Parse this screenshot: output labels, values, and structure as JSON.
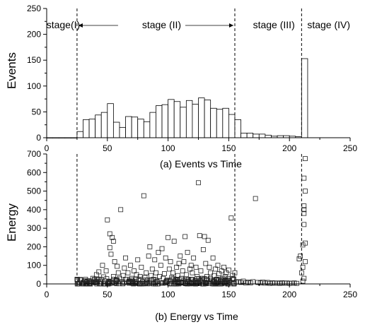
{
  "chart_data": [
    {
      "type": "bar",
      "title": "",
      "caption": "(a) Events vs Time",
      "xlabel": "",
      "ylabel": "Events",
      "xlim": [
        0,
        250
      ],
      "ylim": [
        0,
        250
      ],
      "xticks": [
        0,
        50,
        100,
        150,
        200,
        250
      ],
      "yticks": [
        0,
        50,
        100,
        150,
        200,
        250
      ],
      "bin_width": 5,
      "bins": [
        {
          "x": 0,
          "y": 0
        },
        {
          "x": 5,
          "y": 0
        },
        {
          "x": 10,
          "y": 0
        },
        {
          "x": 15,
          "y": 0
        },
        {
          "x": 20,
          "y": 0
        },
        {
          "x": 25,
          "y": 12
        },
        {
          "x": 30,
          "y": 35
        },
        {
          "x": 35,
          "y": 36
        },
        {
          "x": 40,
          "y": 44
        },
        {
          "x": 45,
          "y": 49
        },
        {
          "x": 50,
          "y": 66
        },
        {
          "x": 55,
          "y": 30
        },
        {
          "x": 60,
          "y": 20
        },
        {
          "x": 65,
          "y": 41
        },
        {
          "x": 70,
          "y": 40
        },
        {
          "x": 75,
          "y": 36
        },
        {
          "x": 80,
          "y": 31
        },
        {
          "x": 85,
          "y": 49
        },
        {
          "x": 90,
          "y": 62
        },
        {
          "x": 95,
          "y": 64
        },
        {
          "x": 100,
          "y": 74
        },
        {
          "x": 105,
          "y": 70
        },
        {
          "x": 110,
          "y": 59
        },
        {
          "x": 115,
          "y": 72
        },
        {
          "x": 120,
          "y": 65
        },
        {
          "x": 125,
          "y": 77
        },
        {
          "x": 130,
          "y": 73
        },
        {
          "x": 135,
          "y": 57
        },
        {
          "x": 140,
          "y": 55
        },
        {
          "x": 145,
          "y": 57
        },
        {
          "x": 150,
          "y": 45
        },
        {
          "x": 155,
          "y": 35
        },
        {
          "x": 160,
          "y": 9
        },
        {
          "x": 165,
          "y": 9
        },
        {
          "x": 170,
          "y": 7
        },
        {
          "x": 175,
          "y": 7
        },
        {
          "x": 180,
          "y": 5
        },
        {
          "x": 185,
          "y": 3
        },
        {
          "x": 190,
          "y": 4
        },
        {
          "x": 195,
          "y": 4
        },
        {
          "x": 200,
          "y": 3
        },
        {
          "x": 205,
          "y": 2
        },
        {
          "x": 210,
          "y": 153
        }
      ],
      "stage_boundaries": [
        25,
        155,
        210
      ],
      "stage_labels": [
        "stage(I)",
        "stage (II)",
        "stage (III)",
        "stage (IV)"
      ]
    },
    {
      "type": "scatter",
      "title": "",
      "caption": "(b) Energy vs Time",
      "xlabel": "",
      "ylabel": "Energy",
      "xlim": [
        0,
        250
      ],
      "ylim": [
        0,
        700
      ],
      "xticks": [
        0,
        50,
        100,
        150,
        200,
        250
      ],
      "yticks": [
        0,
        100,
        200,
        300,
        400,
        500,
        600,
        700
      ],
      "marker": "open-square",
      "stage_boundaries": [
        25,
        155,
        210
      ],
      "points": [
        [
          27,
          8
        ],
        [
          28,
          20
        ],
        [
          30,
          5
        ],
        [
          31,
          12
        ],
        [
          32,
          25
        ],
        [
          33,
          10
        ],
        [
          35,
          5
        ],
        [
          36,
          15
        ],
        [
          38,
          30
        ],
        [
          39,
          8
        ],
        [
          40,
          12
        ],
        [
          41,
          50
        ],
        [
          42,
          20
        ],
        [
          43,
          65
        ],
        [
          44,
          10
        ],
        [
          45,
          25
        ],
        [
          46,
          100
        ],
        [
          47,
          38
        ],
        [
          48,
          15
        ],
        [
          49,
          70
        ],
        [
          50,
          345
        ],
        [
          51,
          5
        ],
        [
          52,
          270
        ],
        [
          52,
          195
        ],
        [
          53,
          160
        ],
        [
          54,
          250
        ],
        [
          55,
          230
        ],
        [
          55,
          40
        ],
        [
          56,
          120
        ],
        [
          57,
          18
        ],
        [
          58,
          95
        ],
        [
          59,
          60
        ],
        [
          60,
          30
        ],
        [
          61,
          400
        ],
        [
          62,
          12
        ],
        [
          63,
          45
        ],
        [
          64,
          85
        ],
        [
          65,
          140
        ],
        [
          66,
          25
        ],
        [
          67,
          60
        ],
        [
          68,
          10
        ],
        [
          69,
          100
        ],
        [
          70,
          30
        ],
        [
          71,
          15
        ],
        [
          72,
          70
        ],
        [
          73,
          8
        ],
        [
          74,
          50
        ],
        [
          75,
          130
        ],
        [
          76,
          20
        ],
        [
          77,
          40
        ],
        [
          78,
          90
        ],
        [
          79,
          12
        ],
        [
          80,
          475
        ],
        [
          81,
          35
        ],
        [
          82,
          60
        ],
        [
          83,
          20
        ],
        [
          84,
          150
        ],
        [
          85,
          200
        ],
        [
          86,
          45
        ],
        [
          87,
          80
        ],
        [
          88,
          25
        ],
        [
          89,
          130
        ],
        [
          90,
          60
        ],
        [
          91,
          15
        ],
        [
          92,
          170
        ],
        [
          93,
          40
        ],
        [
          94,
          100
        ],
        [
          95,
          190
        ],
        [
          96,
          30
        ],
        [
          97,
          55
        ],
        [
          98,
          140
        ],
        [
          99,
          20
        ],
        [
          100,
          250
        ],
        [
          101,
          80
        ],
        [
          102,
          120
        ],
        [
          103,
          35
        ],
        [
          104,
          60
        ],
        [
          105,
          230
        ],
        [
          106,
          20
        ],
        [
          107,
          90
        ],
        [
          108,
          45
        ],
        [
          109,
          110
        ],
        [
          110,
          150
        ],
        [
          111,
          30
        ],
        [
          112,
          70
        ],
        [
          113,
          120
        ],
        [
          114,
          255
        ],
        [
          115,
          50
        ],
        [
          116,
          170
        ],
        [
          117,
          25
        ],
        [
          118,
          80
        ],
        [
          119,
          100
        ],
        [
          120,
          60
        ],
        [
          121,
          140
        ],
        [
          122,
          15
        ],
        [
          123,
          90
        ],
        [
          124,
          40
        ],
        [
          125,
          545
        ],
        [
          126,
          260
        ],
        [
          127,
          70
        ],
        [
          128,
          30
        ],
        [
          129,
          185
        ],
        [
          130,
          255
        ],
        [
          131,
          110
        ],
        [
          132,
          40
        ],
        [
          133,
          235
        ],
        [
          134,
          90
        ],
        [
          135,
          60
        ],
        [
          136,
          20
        ],
        [
          137,
          140
        ],
        [
          138,
          45
        ],
        [
          139,
          80
        ],
        [
          140,
          25
        ],
        [
          141,
          100
        ],
        [
          142,
          55
        ],
        [
          143,
          15
        ],
        [
          144,
          70
        ],
        [
          145,
          30
        ],
        [
          146,
          90
        ],
        [
          147,
          40
        ],
        [
          148,
          60
        ],
        [
          149,
          20
        ],
        [
          150,
          75
        ],
        [
          151,
          10
        ],
        [
          152,
          355
        ],
        [
          153,
          45
        ],
        [
          154,
          25
        ],
        [
          155,
          60
        ],
        [
          156,
          10
        ],
        [
          158,
          12
        ],
        [
          160,
          8
        ],
        [
          162,
          15
        ],
        [
          164,
          5
        ],
        [
          166,
          10
        ],
        [
          168,
          6
        ],
        [
          170,
          12
        ],
        [
          172,
          460
        ],
        [
          174,
          8
        ],
        [
          176,
          5
        ],
        [
          178,
          10
        ],
        [
          180,
          4
        ],
        [
          182,
          8
        ],
        [
          184,
          3
        ],
        [
          186,
          6
        ],
        [
          188,
          4
        ],
        [
          190,
          5
        ],
        [
          192,
          3
        ],
        [
          194,
          6
        ],
        [
          196,
          4
        ],
        [
          198,
          5
        ],
        [
          200,
          3
        ],
        [
          202,
          4
        ],
        [
          204,
          5
        ],
        [
          206,
          3
        ],
        [
          208,
          135
        ],
        [
          209,
          150
        ],
        [
          210,
          60
        ],
        [
          211,
          210
        ],
        [
          211,
          90
        ],
        [
          212,
          320
        ],
        [
          212,
          380
        ],
        [
          212,
          400
        ],
        [
          212,
          420
        ],
        [
          212,
          570
        ],
        [
          213,
          675
        ],
        [
          213,
          500
        ],
        [
          213,
          220
        ],
        [
          212,
          30
        ],
        [
          213,
          120
        ],
        [
          211,
          15
        ]
      ],
      "dense_band": {
        "x_from": 25,
        "x_to": 155,
        "y_max": 30,
        "count": 240
      }
    }
  ]
}
